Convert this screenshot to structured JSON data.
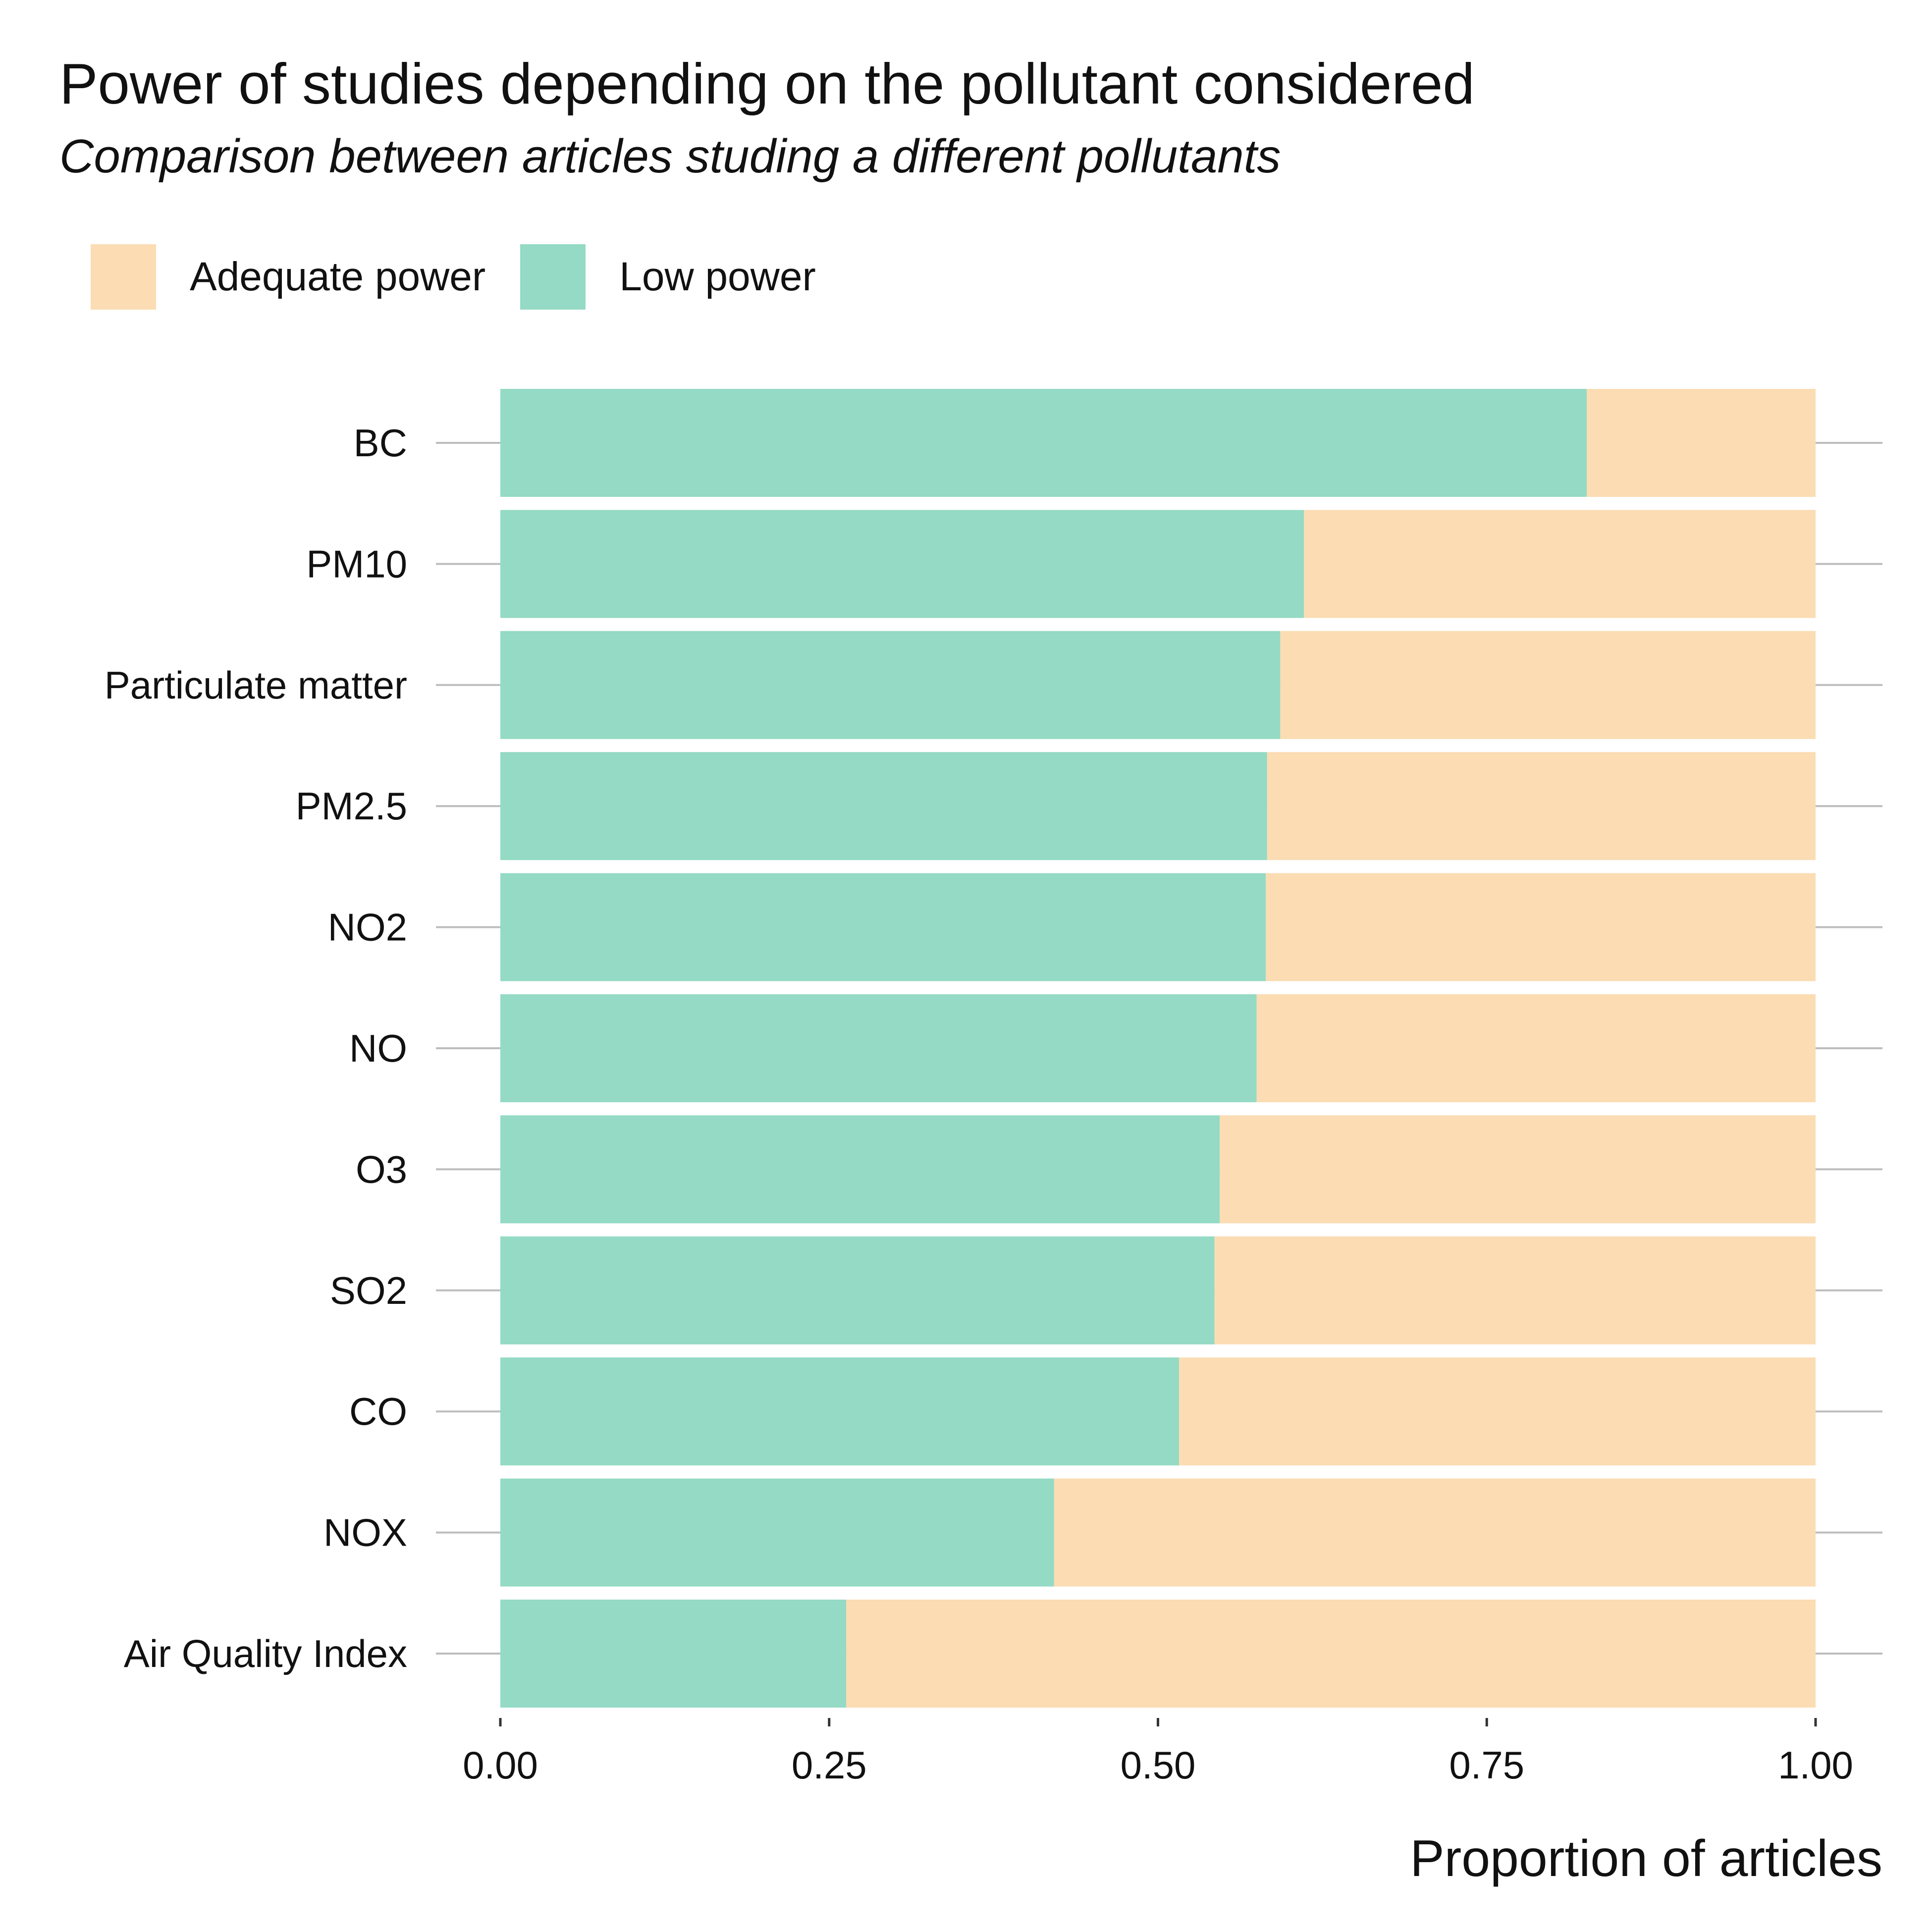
{
  "colors": {
    "low": "#94dac4",
    "adequate": "#fbdcb3",
    "grid": "#bdbdbd",
    "text": "#111111"
  },
  "legend": [
    {
      "key": "adequate",
      "label": "Adequate power",
      "color": "#fbdcb3"
    },
    {
      "key": "low",
      "label": "Low power",
      "color": "#94dac4"
    }
  ],
  "chart_data": {
    "type": "bar",
    "orientation": "horizontal",
    "stacked": true,
    "title": "Power of studies depending on the pollutant considered",
    "subtitle": "Comparison between articles studing a different pollutants",
    "xlabel": "Proportion of articles",
    "ylabel": "",
    "xlim": [
      0,
      1
    ],
    "x_ticks": [
      "0.00",
      "0.25",
      "0.50",
      "0.75",
      "1.00"
    ],
    "legend_position": "top-left",
    "categories": [
      "BC",
      "PM10",
      "Particulate matter",
      "PM2.5",
      "NO2",
      "NO",
      "O3",
      "SO2",
      "CO",
      "NOX",
      "Air Quality Index"
    ],
    "series": [
      {
        "name": "Low power",
        "color": "#94dac4",
        "values": [
          0.826,
          0.611,
          0.593,
          0.583,
          0.582,
          0.575,
          0.547,
          0.543,
          0.516,
          0.421,
          0.263
        ]
      },
      {
        "name": "Adequate power",
        "color": "#fbdcb3",
        "values": [
          0.174,
          0.389,
          0.407,
          0.417,
          0.418,
          0.425,
          0.453,
          0.457,
          0.484,
          0.579,
          0.737
        ]
      }
    ]
  }
}
